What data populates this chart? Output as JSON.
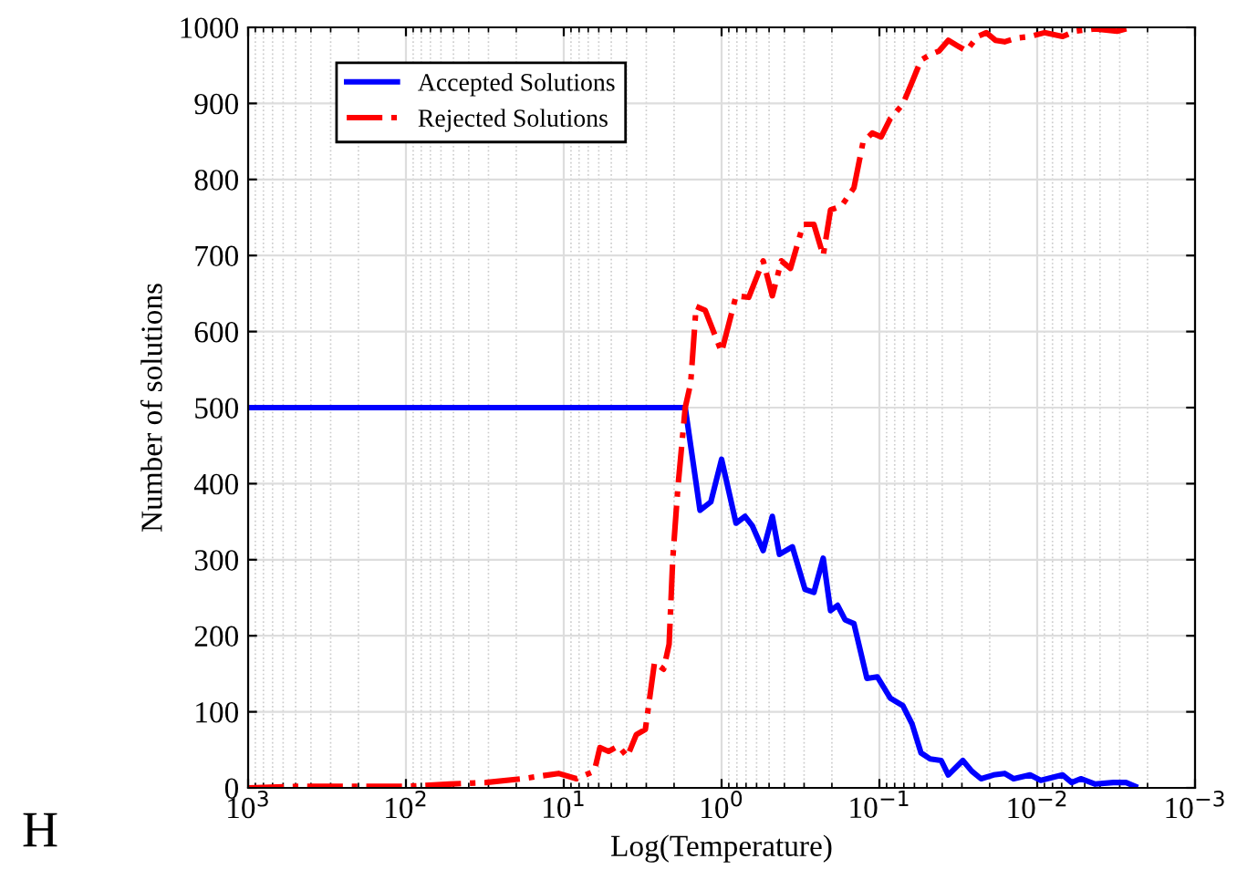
{
  "chart_data": {
    "type": "line",
    "xlabel": "Log(Temperature)",
    "ylabel": "Number of solutions",
    "log": "x",
    "xlim": [
      1000,
      0.001
    ],
    "xticks": [
      {
        "value": 1000,
        "label": "10$^{3}$"
      },
      {
        "value": 100,
        "label": "10$^{2}$"
      },
      {
        "value": 10,
        "label": "10$^{1}$"
      },
      {
        "value": 1,
        "label": "10$^{0}$"
      },
      {
        "value": 0.1,
        "label": "10$^{−1}$"
      },
      {
        "value": 0.01,
        "label": "10$^{−2}$"
      },
      {
        "value": 0.001,
        "label": "10$^{−3}$"
      }
    ],
    "ylim": [
      0,
      1000
    ],
    "yticks": [
      0,
      100,
      200,
      300,
      400,
      500,
      600,
      700,
      800,
      900,
      1000
    ],
    "grid": true,
    "legend": "top left",
    "annotations": [
      "H"
    ],
    "series": [
      {
        "name": "Accepted Solutions",
        "color": "#0000ff",
        "line_style": "solid",
        "x": [
          1000,
          1.7,
          1.37,
          1.17,
          1.0,
          0.81,
          0.71,
          0.64,
          0.545,
          0.477,
          0.43,
          0.356,
          0.296,
          0.26,
          0.227,
          0.204,
          0.184,
          0.165,
          0.145,
          0.12,
          0.103,
          0.0853,
          0.071,
          0.0621,
          0.0545,
          0.0477,
          0.0406,
          0.0366,
          0.0296,
          0.026,
          0.0227,
          0.0189,
          0.0161,
          0.0141,
          0.0111,
          0.0095,
          0.0069,
          0.00605,
          0.0053,
          0.00429,
          0.00329,
          0.00274,
          0.00239
        ],
        "values": [
          500,
          500,
          365,
          376,
          432,
          348,
          357,
          345,
          312,
          357,
          307,
          317,
          261,
          257,
          302,
          233,
          240,
          221,
          216,
          144,
          146,
          118,
          108,
          84,
          46,
          38,
          36,
          17,
          36,
          22,
          12,
          17,
          19,
          12,
          17,
          10,
          17,
          7,
          12,
          5,
          7,
          7,
          2
        ]
      },
      {
        "name": "Rejected Solutions",
        "color": "#ff0000",
        "line_style": "dashdot",
        "x": [
          1000,
          490,
          199,
          100,
          53,
          31.2,
          18.4,
          10.8,
          8.3,
          7.3,
          6.4,
          5.9,
          5.2,
          4.5,
          3.96,
          3.47,
          3.04,
          2.66,
          2.33,
          2.15,
          2.04,
          1.89,
          1.7,
          1.57,
          1.45,
          1.27,
          1.0,
          0.81,
          0.673,
          0.545,
          0.477,
          0.418,
          0.366,
          0.304,
          0.26,
          0.227,
          0.204,
          0.174,
          0.145,
          0.127,
          0.111,
          0.0975,
          0.0853,
          0.071,
          0.0621,
          0.0545,
          0.0477,
          0.0418,
          0.0366,
          0.0321,
          0.0281,
          0.0239,
          0.021,
          0.0184,
          0.0161,
          0.0134,
          0.0111,
          0.009,
          0.0069,
          0.00574,
          0.00429,
          0.00312,
          0.00252
        ],
        "values": [
          0,
          2,
          2,
          2,
          5,
          7,
          12,
          19,
          12,
          17,
          22,
          53,
          48,
          55,
          41,
          70,
          77,
          165,
          156,
          189,
          300,
          396,
          500,
          532,
          633,
          628,
          573,
          647,
          645,
          693,
          647,
          693,
          683,
          741,
          741,
          700,
          760,
          765,
          789,
          849,
          861,
          856,
          880,
          899,
          928,
          957,
          964,
          969,
          983,
          976,
          969,
          988,
          993,
          983,
          981,
          986,
          988,
          993,
          988,
          995,
          998,
          995,
          1000
        ]
      }
    ]
  }
}
